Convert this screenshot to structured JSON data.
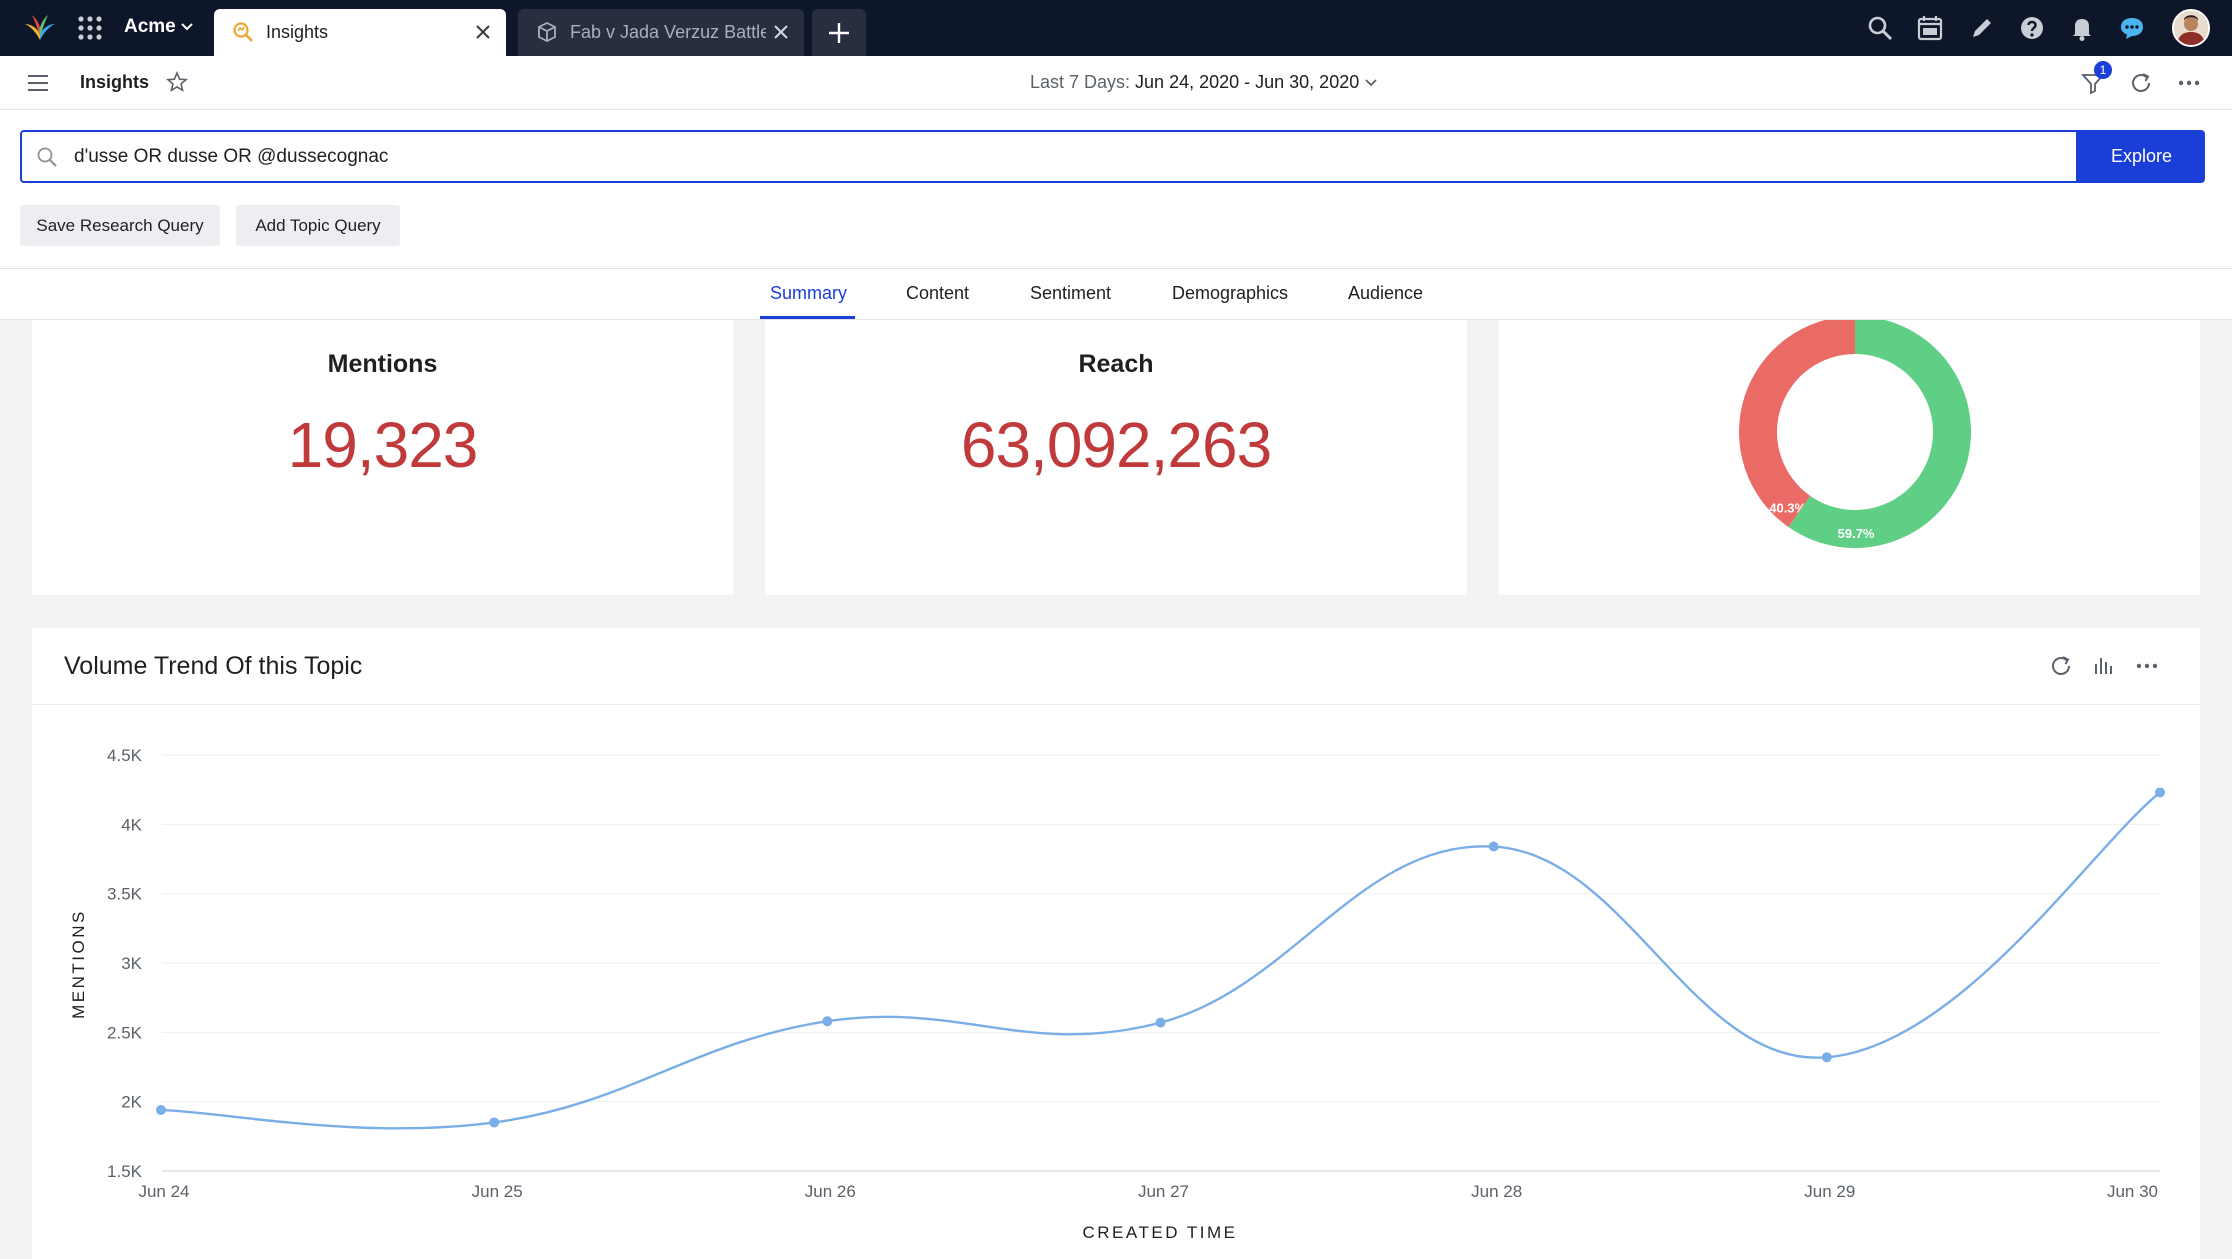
{
  "topbar": {
    "brand": "Acme",
    "tabs": [
      {
        "label": "Insights",
        "active": true
      },
      {
        "label": "Fab v Jada Verzuz Battle",
        "active": false
      }
    ]
  },
  "appbar": {
    "title": "Insights",
    "date_prefix": "Last 7 Days: ",
    "date_range": "Jun 24, 2020 - Jun 30, 2020",
    "filter_count": "1"
  },
  "query": {
    "value": "d'usse OR dusse OR @dussecognac",
    "explore_label": "Explore",
    "save_label": "Save Research Query",
    "add_topic_label": "Add Topic Query"
  },
  "nav": {
    "tabs": [
      "Summary",
      "Content",
      "Sentiment",
      "Demographics",
      "Audience"
    ],
    "active": "Summary"
  },
  "metrics": {
    "mentions": {
      "title": "Mentions",
      "value": "19,323"
    },
    "reach": {
      "title": "Reach",
      "value": "63,092,263"
    }
  },
  "sentiment_donut": {
    "slices": [
      {
        "label": "40.3%",
        "value": 40.3,
        "color": "#ea6b66"
      },
      {
        "label": "59.7%",
        "value": 59.7,
        "color": "#5fcf86"
      }
    ]
  },
  "volume": {
    "title": "Volume Trend Of this Topic"
  },
  "chart_data": {
    "type": "line",
    "title": "Volume Trend Of this Topic",
    "xlabel": "CREATED TIME",
    "ylabel": "MENTIONS",
    "categories": [
      "Jun 24",
      "Jun 25",
      "Jun 26",
      "Jun 27",
      "Jun 28",
      "Jun 29",
      "Jun 30"
    ],
    "values": [
      1940,
      1850,
      2580,
      2570,
      3840,
      2320,
      4230
    ],
    "ylim": [
      1500,
      4500
    ],
    "yticks": [
      {
        "value": 1500,
        "label": "1.5K"
      },
      {
        "value": 2000,
        "label": "2K"
      },
      {
        "value": 2500,
        "label": "2.5K"
      },
      {
        "value": 3000,
        "label": "3K"
      },
      {
        "value": 3500,
        "label": "3.5K"
      },
      {
        "value": 4000,
        "label": "4K"
      },
      {
        "value": 4500,
        "label": "4.5K"
      }
    ],
    "color": "#7aaee6",
    "grid": true
  },
  "colors": {
    "accent": "#1a3fd8",
    "metric": "#c0393b",
    "topbar": "#0e1629"
  }
}
